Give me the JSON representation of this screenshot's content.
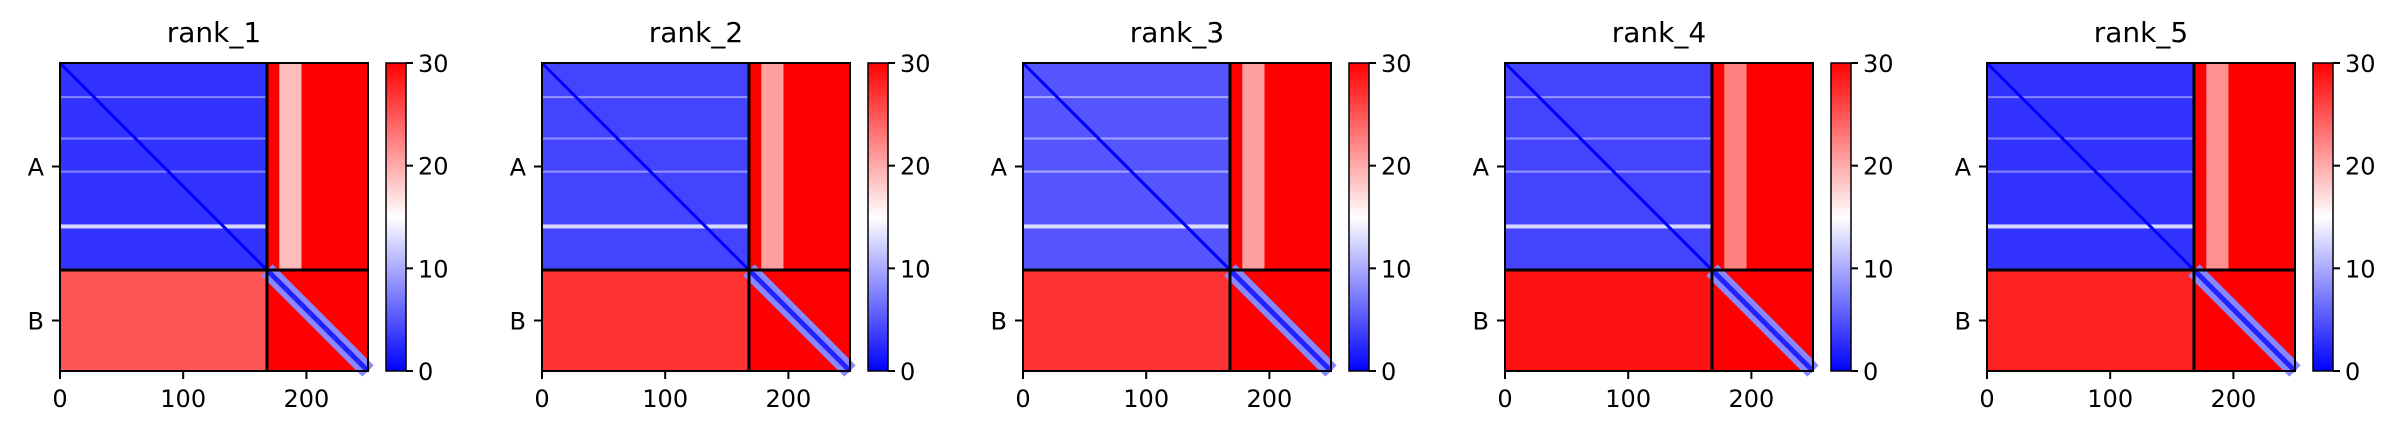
{
  "chart_data": {
    "type": "heatmap",
    "colormap": [
      "#0000ff",
      "#ffffff",
      "#ff0000"
    ],
    "chain_boundary": 168,
    "sequence_length": 250,
    "xlim": [
      0,
      250
    ],
    "x_ticks": [
      0,
      100,
      200
    ],
    "y_tick_labels": [
      "A",
      "B"
    ],
    "colorbar": {
      "range": [
        0,
        30
      ],
      "ticks": [
        0,
        10,
        20,
        30
      ]
    },
    "panels": [
      {
        "title": "rank_1",
        "ab_level": 3,
        "ba_level": 25,
        "bb_diag": 2
      },
      {
        "title": "rank_2",
        "ab_level": 4,
        "ba_level": 27,
        "bb_diag": 2
      },
      {
        "title": "rank_3",
        "ab_level": 5,
        "ba_level": 27,
        "bb_diag": 2
      },
      {
        "title": "rank_4",
        "ab_level": 4,
        "ba_level": 29,
        "bb_diag": 2
      },
      {
        "title": "rank_5",
        "ab_level": 3,
        "ba_level": 28,
        "bb_diag": 2
      }
    ]
  }
}
